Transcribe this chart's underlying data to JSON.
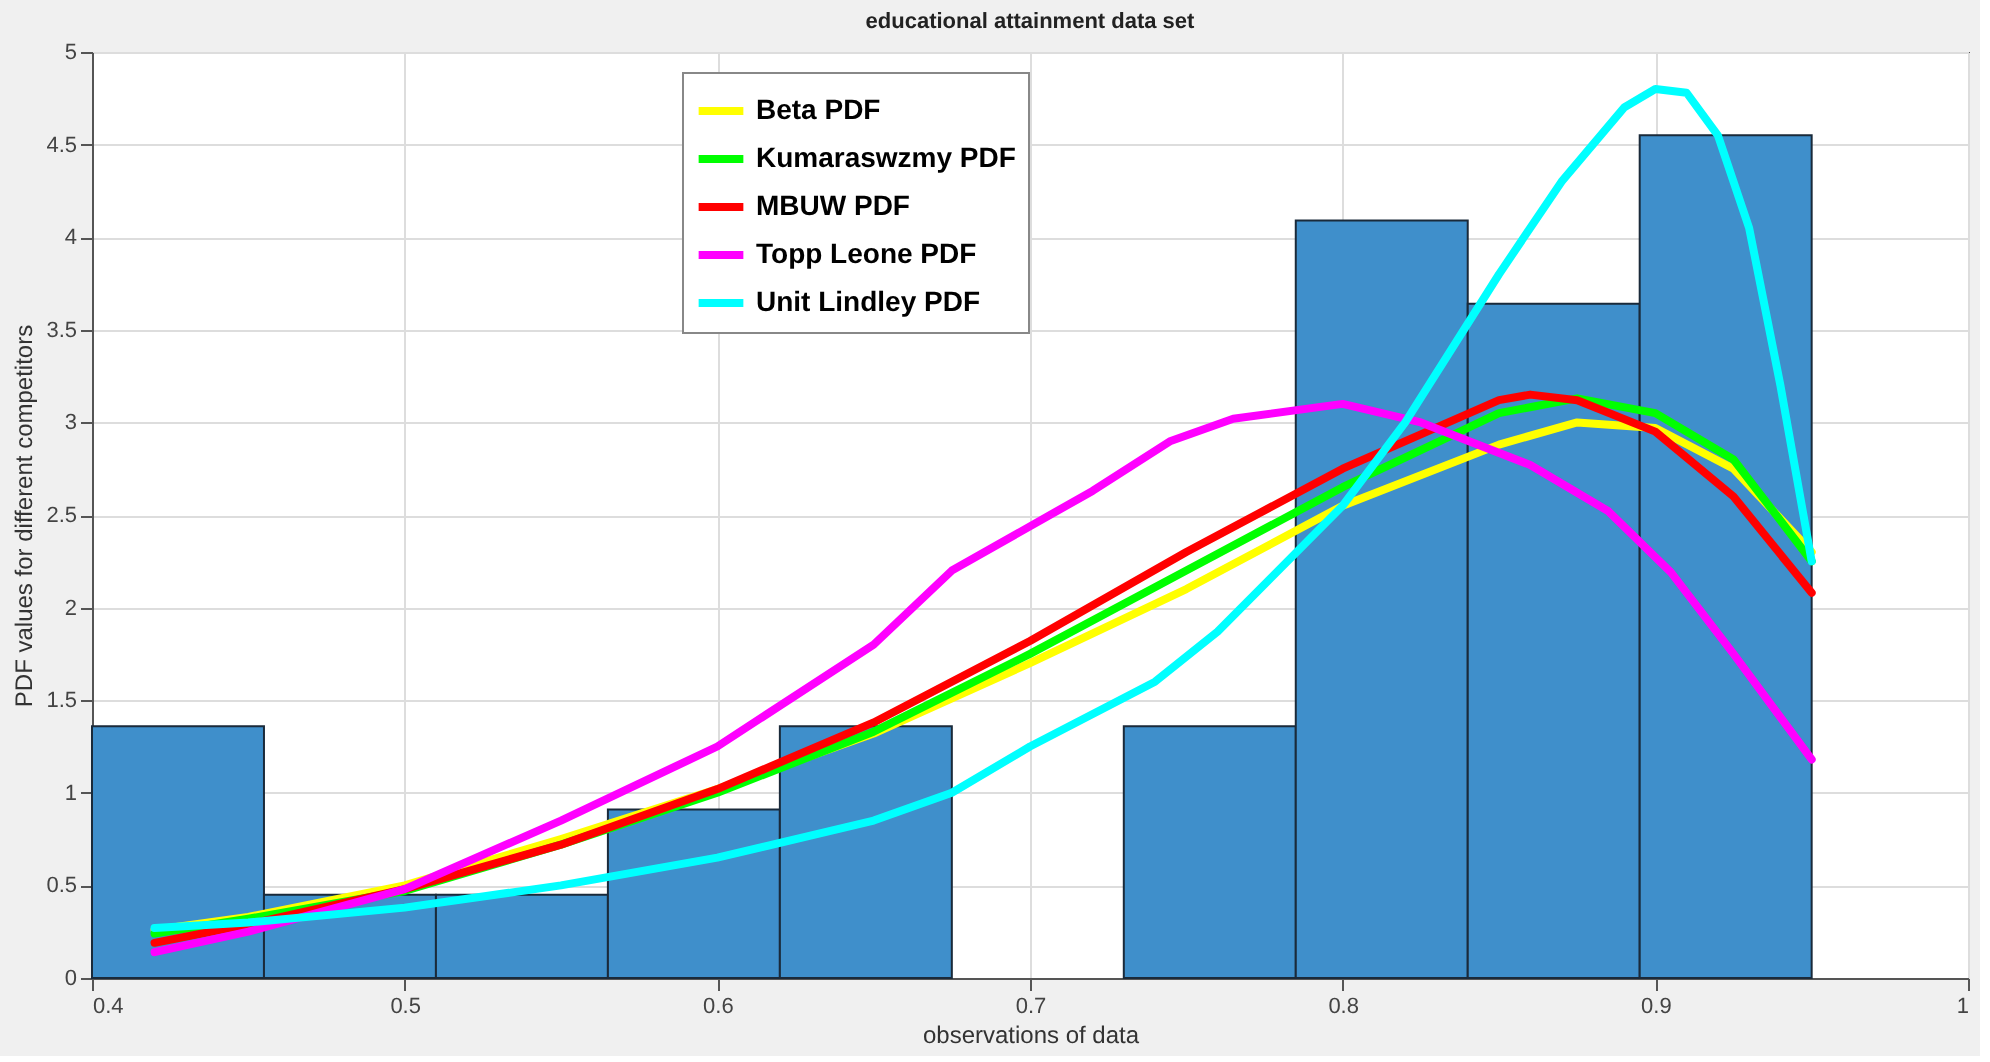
{
  "chart_data": {
    "type": "histogram",
    "title": "educational attainment data set",
    "xlabel": "observations of  data",
    "ylabel": "PDF values for different competitors",
    "bins": [
      0.4,
      0.455,
      0.51,
      0.565,
      0.62,
      0.675,
      0.73,
      0.785,
      0.84,
      0.895,
      0.95
    ],
    "values": [
      1.36,
      0.45,
      0.45,
      0.91,
      1.36,
      0,
      1.36,
      4.09,
      3.64,
      4.55
    ],
    "color": "#3f8fcb",
    "series": [
      {
        "name": "Beta PDF",
        "type": "line",
        "color": "#ffff00",
        "x": [
          0.42,
          0.45,
          0.5,
          0.55,
          0.6,
          0.65,
          0.7,
          0.75,
          0.8,
          0.85,
          0.875,
          0.9,
          0.925,
          0.95
        ],
        "values": [
          0.26,
          0.33,
          0.5,
          0.75,
          1.02,
          1.32,
          1.7,
          2.1,
          2.55,
          2.88,
          3.0,
          2.97,
          2.75,
          2.3
        ]
      },
      {
        "name": "Kumaraswzmy PDF",
        "type": "line",
        "color": "#00ff00",
        "x": [
          0.42,
          0.45,
          0.5,
          0.55,
          0.6,
          0.65,
          0.7,
          0.75,
          0.8,
          0.85,
          0.875,
          0.9,
          0.925,
          0.95
        ],
        "values": [
          0.24,
          0.32,
          0.47,
          0.72,
          1.0,
          1.33,
          1.75,
          2.2,
          2.65,
          3.05,
          3.13,
          3.05,
          2.8,
          2.25
        ]
      },
      {
        "name": "MBUW PDF",
        "type": "line",
        "color": "#ff0000",
        "x": [
          0.42,
          0.45,
          0.5,
          0.55,
          0.6,
          0.65,
          0.7,
          0.75,
          0.8,
          0.85,
          0.86,
          0.875,
          0.9,
          0.925,
          0.95
        ],
        "values": [
          0.19,
          0.29,
          0.48,
          0.72,
          1.02,
          1.38,
          1.82,
          2.3,
          2.75,
          3.12,
          3.15,
          3.12,
          2.95,
          2.6,
          2.08
        ]
      },
      {
        "name": "Topp Leone PDF",
        "type": "line",
        "color": "#ff00ff",
        "x": [
          0.42,
          0.45,
          0.5,
          0.55,
          0.6,
          0.65,
          0.675,
          0.72,
          0.745,
          0.765,
          0.8,
          0.825,
          0.86,
          0.885,
          0.905,
          0.925,
          0.95
        ],
        "values": [
          0.14,
          0.25,
          0.48,
          0.85,
          1.25,
          1.8,
          2.2,
          2.63,
          2.9,
          3.02,
          3.1,
          3.0,
          2.77,
          2.52,
          2.19,
          1.75,
          1.18
        ]
      },
      {
        "name": "Unit Lindley PDF",
        "type": "line",
        "color": "#00ffff",
        "x": [
          0.42,
          0.45,
          0.5,
          0.55,
          0.6,
          0.65,
          0.675,
          0.7,
          0.74,
          0.76,
          0.8,
          0.82,
          0.85,
          0.87,
          0.89,
          0.9,
          0.91,
          0.92,
          0.93,
          0.94,
          0.95
        ],
        "values": [
          0.27,
          0.3,
          0.38,
          0.5,
          0.65,
          0.85,
          1.0,
          1.25,
          1.6,
          1.87,
          2.55,
          3.0,
          3.8,
          4.3,
          4.7,
          4.8,
          4.78,
          4.55,
          4.05,
          3.2,
          2.25
        ]
      }
    ],
    "xlim": [
      0.4,
      1
    ],
    "xticks": [
      0.4,
      0.5,
      0.6,
      0.7,
      0.8,
      0.9,
      1
    ],
    "ylim": [
      0,
      5
    ],
    "yticks": [
      0,
      0.5,
      1,
      1.5,
      2,
      2.5,
      3,
      3.5,
      4,
      4.5,
      5
    ],
    "grid": true,
    "legend": "top"
  }
}
